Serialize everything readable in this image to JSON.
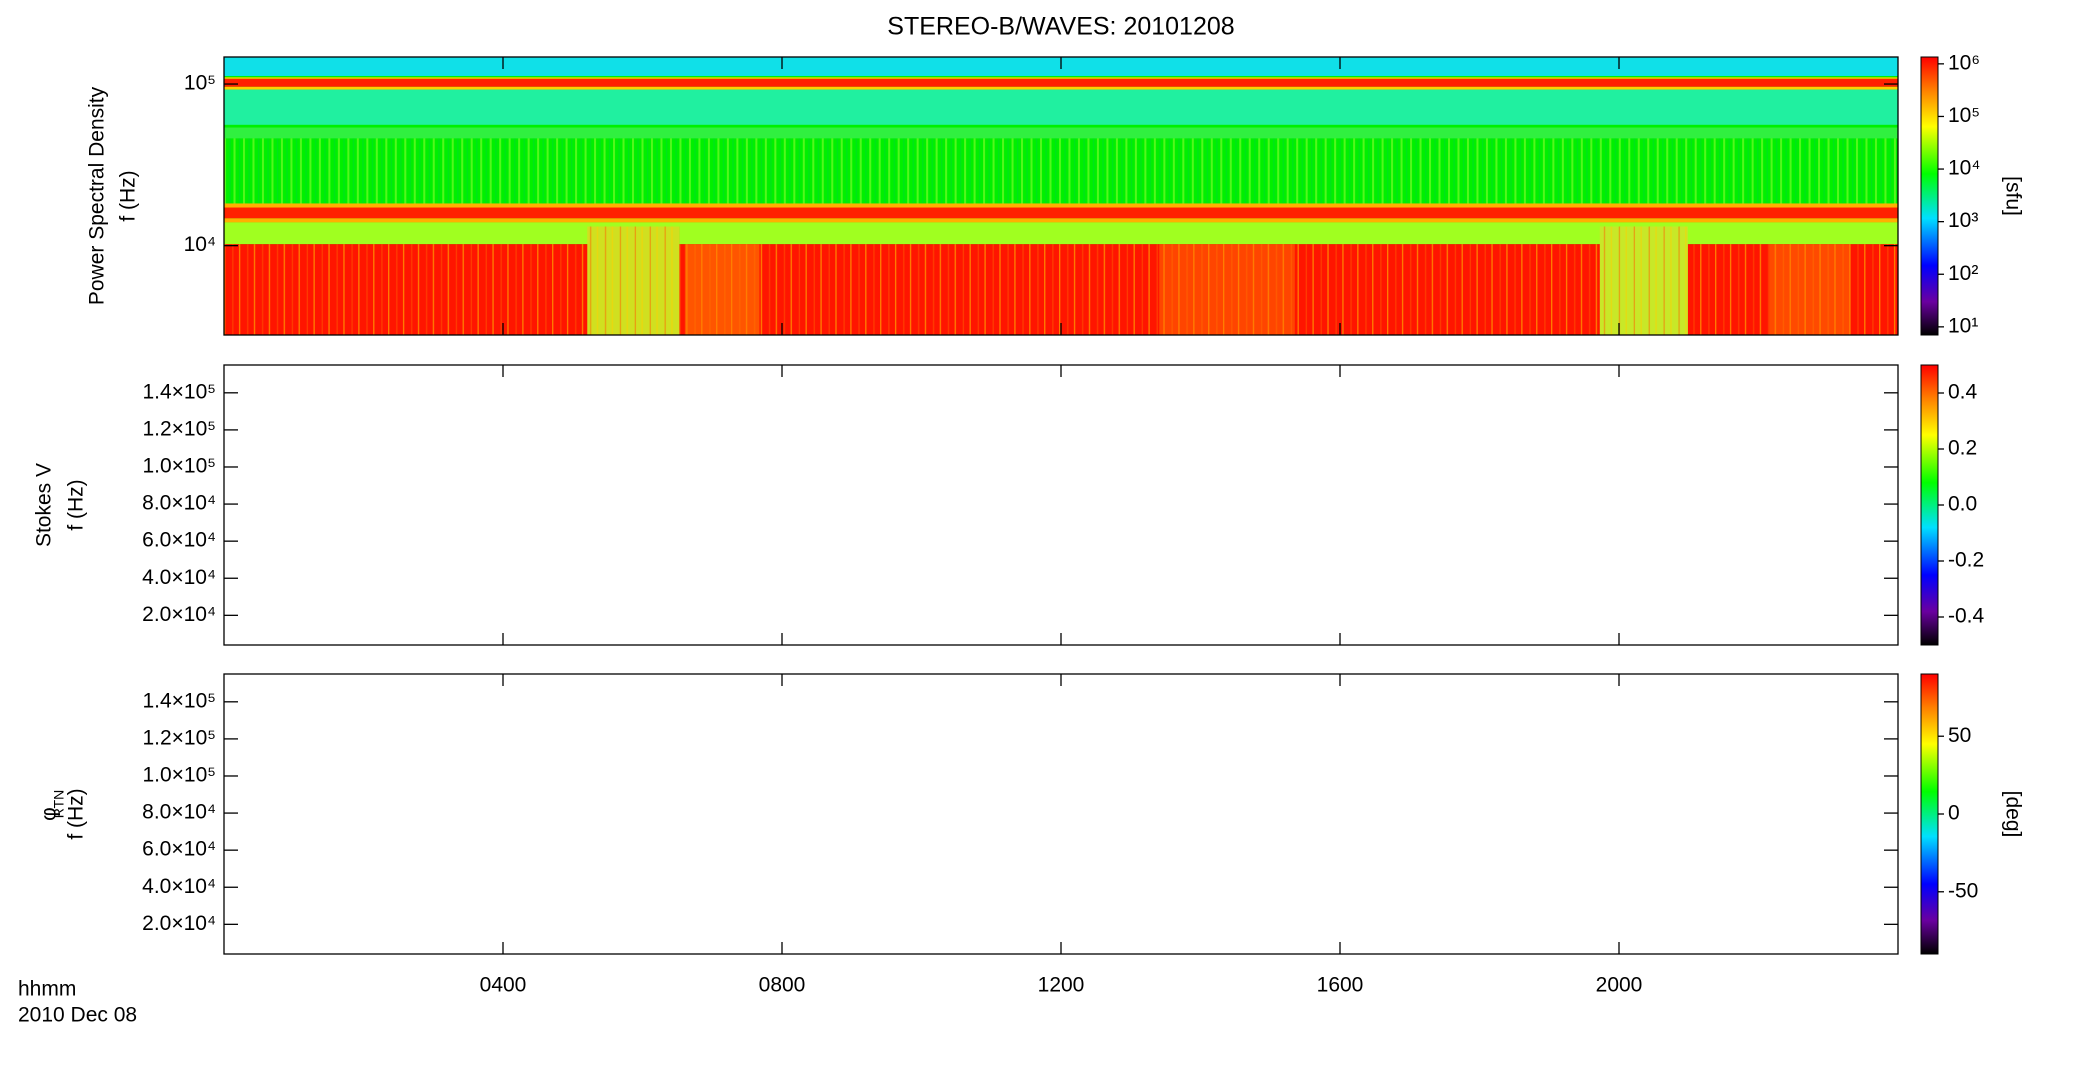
{
  "chart_data": [
    {
      "type": "spectrogram",
      "title": "STEREO-B/WAVES: 20101208",
      "ylabel": "Power Spectral Density",
      "ylabel2": "f (Hz)",
      "log": true,
      "ylim": [
        2800,
        147000
      ],
      "yticks": [
        {
          "value": 10000,
          "label": "10⁴"
        },
        {
          "value": 100000,
          "label": "10⁵"
        }
      ],
      "xlim": [
        0,
        24
      ],
      "xticks": [
        4,
        8,
        12,
        16,
        20
      ],
      "colorbar": {
        "log": true,
        "zlim": [
          7,
          1350000
        ],
        "label": "[sfu]",
        "zticks": [
          {
            "value": 10,
            "label": "10¹"
          },
          {
            "value": 100,
            "label": "10²"
          },
          {
            "value": 1000,
            "label": "10³"
          },
          {
            "value": 10000,
            "label": "10⁴"
          },
          {
            "value": 100000,
            "label": "10⁵"
          },
          {
            "value": 1000000,
            "label": "10⁶"
          }
        ]
      }
    },
    {
      "type": "spectrogram",
      "ylabel": "Stokes V",
      "ylabel2": "f (Hz)",
      "log": false,
      "ylim": [
        4000,
        155000
      ],
      "yticks": [
        {
          "value": 20000,
          "label": "2.0×10⁴"
        },
        {
          "value": 40000,
          "label": "4.0×10⁴"
        },
        {
          "value": 60000,
          "label": "6.0×10⁴"
        },
        {
          "value": 80000,
          "label": "8.0×10⁴"
        },
        {
          "value": 100000,
          "label": "1.0×10⁵"
        },
        {
          "value": 120000,
          "label": "1.2×10⁵"
        },
        {
          "value": 140000,
          "label": "1.4×10⁵"
        }
      ],
      "xlim": [
        0,
        24
      ],
      "xticks": [
        4,
        8,
        12,
        16,
        20
      ],
      "colorbar": {
        "log": false,
        "zlim": [
          -0.5,
          0.5
        ],
        "zticks": [
          {
            "value": -0.4,
            "label": "-0.4"
          },
          {
            "value": -0.2,
            "label": "-0.2"
          },
          {
            "value": 0,
            "label": "0.0"
          },
          {
            "value": 0.2,
            "label": "0.2"
          },
          {
            "value": 0.4,
            "label": "0.4"
          }
        ]
      }
    },
    {
      "type": "spectrogram",
      "ylabel": "φ",
      "ylabel_sub": "RTN",
      "ylabel2": "f (Hz)",
      "log": false,
      "ylim": [
        4000,
        155000
      ],
      "yticks": [
        {
          "value": 20000,
          "label": "2.0×10⁴"
        },
        {
          "value": 40000,
          "label": "4.0×10⁴"
        },
        {
          "value": 60000,
          "label": "6.0×10⁴"
        },
        {
          "value": 80000,
          "label": "8.0×10⁴"
        },
        {
          "value": 100000,
          "label": "1.0×10⁵"
        },
        {
          "value": 120000,
          "label": "1.2×10⁵"
        },
        {
          "value": 140000,
          "label": "1.4×10⁵"
        }
      ],
      "xlim": [
        0,
        24
      ],
      "xlabel": "hhmm",
      "date": "2010 Dec 08",
      "xticks": [
        {
          "value": 4,
          "label": "0400"
        },
        {
          "value": 8,
          "label": "0800"
        },
        {
          "value": 12,
          "label": "1200"
        },
        {
          "value": 16,
          "label": "1600"
        },
        {
          "value": 20,
          "label": "2000"
        }
      ],
      "colorbar": {
        "log": false,
        "zlim": [
          -90,
          90
        ],
        "label": "[deg]",
        "zticks": [
          -50,
          0,
          50
        ]
      }
    }
  ]
}
